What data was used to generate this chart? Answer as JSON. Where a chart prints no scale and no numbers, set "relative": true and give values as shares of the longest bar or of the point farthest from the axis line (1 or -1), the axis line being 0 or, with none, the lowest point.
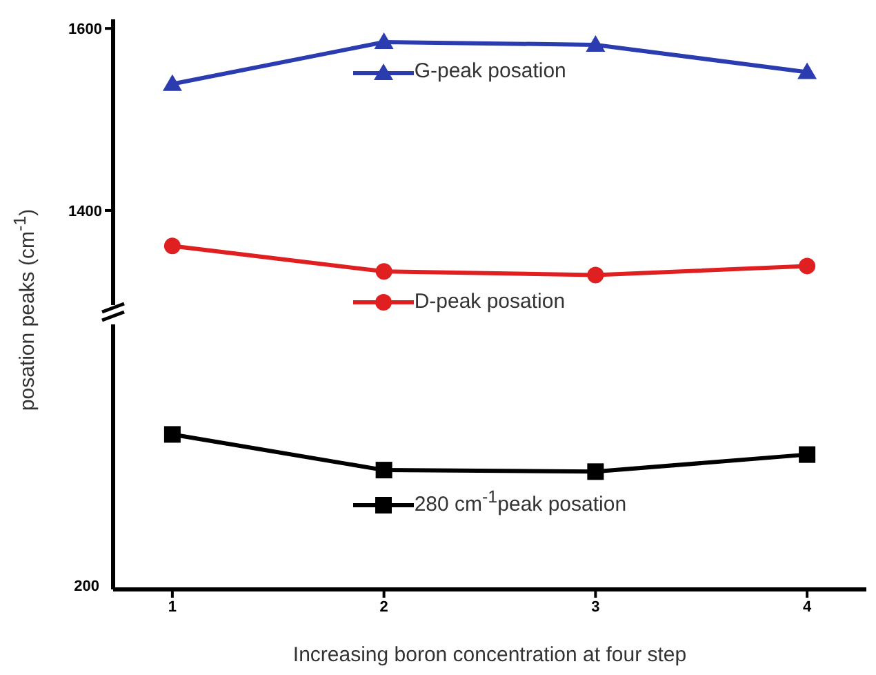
{
  "chart_data": [
    {
      "type": "line",
      "ylabel": "posation peaks (cm$^{-1}$)",
      "categories": [
        "1",
        "2",
        "3",
        "4"
      ],
      "ylim": [
        1290,
        1610
      ],
      "yticks": [
        1400,
        1600
      ],
      "tick_labels": "y",
      "legend": "center",
      "series": [
        {
          "name": "G-peak posation",
          "color": "#2b3cb0",
          "marker": "triangle",
          "values": [
            1539,
            1585,
            1582,
            1552
          ]
        },
        {
          "name": "D-peak posation",
          "color": "#e02020",
          "marker": "circle",
          "values": [
            1361,
            1333,
            1329,
            1339
          ]
        }
      ]
    },
    {
      "type": "line",
      "xlabel": "Increasing boron concentration at four step",
      "categories": [
        "1",
        "2",
        "3",
        "4"
      ],
      "relative": true,
      "tick_labels": "x",
      "legend": "center",
      "annotations": [
        "200"
      ],
      "series": [
        {
          "name": "280 cm$^{-1}$peak posation",
          "color": "#000000",
          "marker": "square",
          "values": [
            1,
            0.77,
            0.76,
            0.87
          ]
        }
      ]
    }
  ]
}
